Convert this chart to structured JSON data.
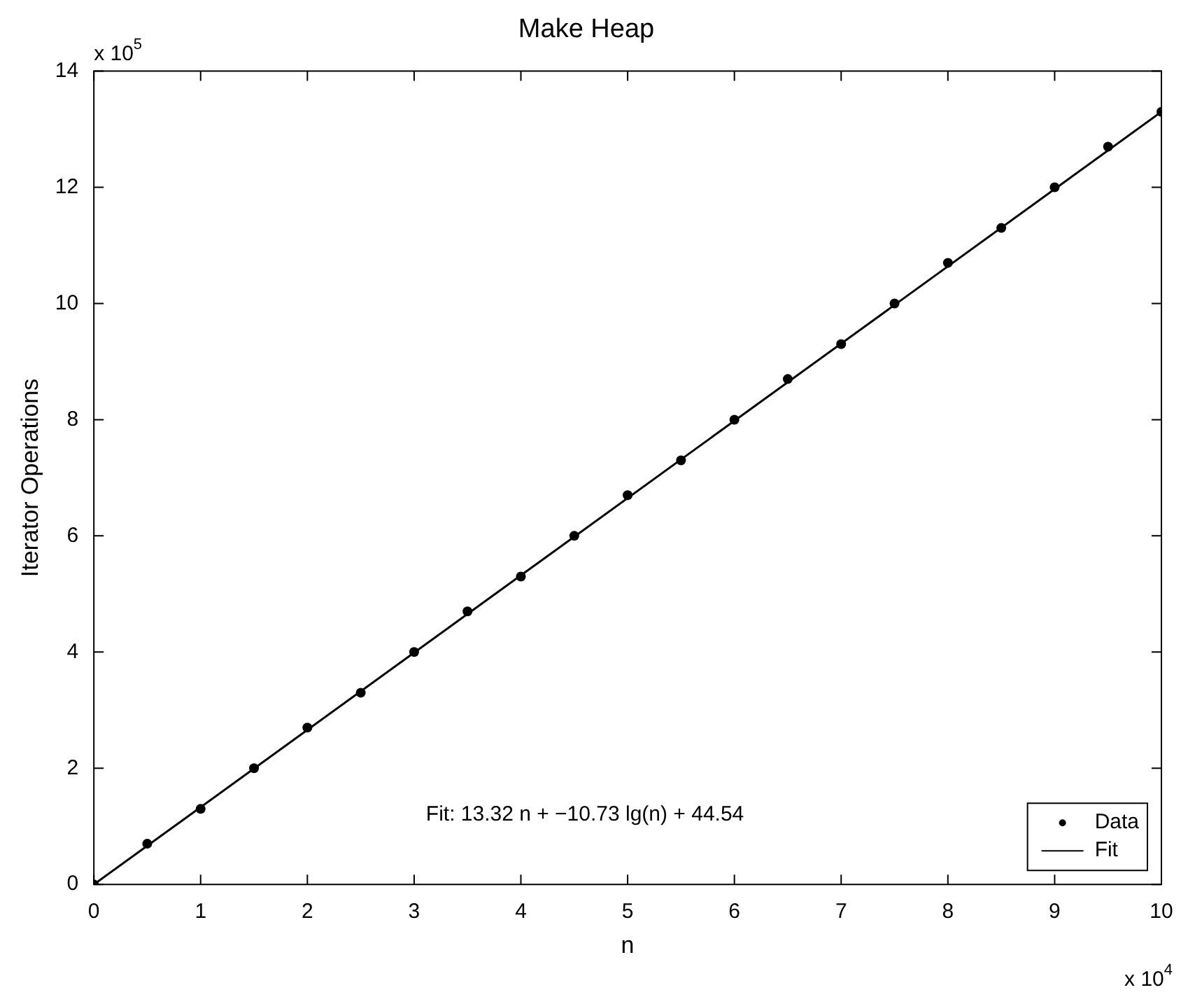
{
  "chart_data": {
    "type": "scatter",
    "title": "Make Heap",
    "xlabel": "n",
    "ylabel": "Iterator Operations",
    "annotations": [
      "x 10$^{5}$",
      "x 10$^{4}$",
      "Fit: 13.32 n + −10.73 lg(n) + 44.54"
    ],
    "x": [
      0,
      0.5,
      1,
      1.5,
      2,
      2.5,
      3,
      3.5,
      4,
      4.5,
      5,
      5.5,
      6,
      6.5,
      7,
      7.5,
      8,
      8.5,
      9,
      9.5,
      10
    ],
    "series": [
      {
        "name": "Data",
        "color": "#000000",
        "marker": "circle",
        "values": [
          0,
          0.7,
          1.3,
          2.0,
          2.7,
          3.3,
          4.0,
          4.7,
          5.3,
          6.0,
          6.7,
          7.3,
          8.0,
          8.7,
          9.3,
          10.0,
          10.7,
          11.3,
          12.0,
          12.7,
          13.3
        ]
      },
      {
        "name": "Fit",
        "type": "line",
        "color": "#000000",
        "marker": "none",
        "line_style": "solid",
        "x": [
          0,
          10
        ],
        "values": [
          0,
          13.3
        ]
      }
    ],
    "xlim": [
      0,
      10
    ],
    "xticks": [
      0,
      1,
      2,
      3,
      4,
      5,
      6,
      7,
      8,
      9,
      10
    ],
    "ylim": [
      0,
      14
    ],
    "yticks": [
      0,
      2,
      4,
      6,
      8,
      10,
      12,
      14
    ],
    "grid": false,
    "legend": "bottom right"
  }
}
